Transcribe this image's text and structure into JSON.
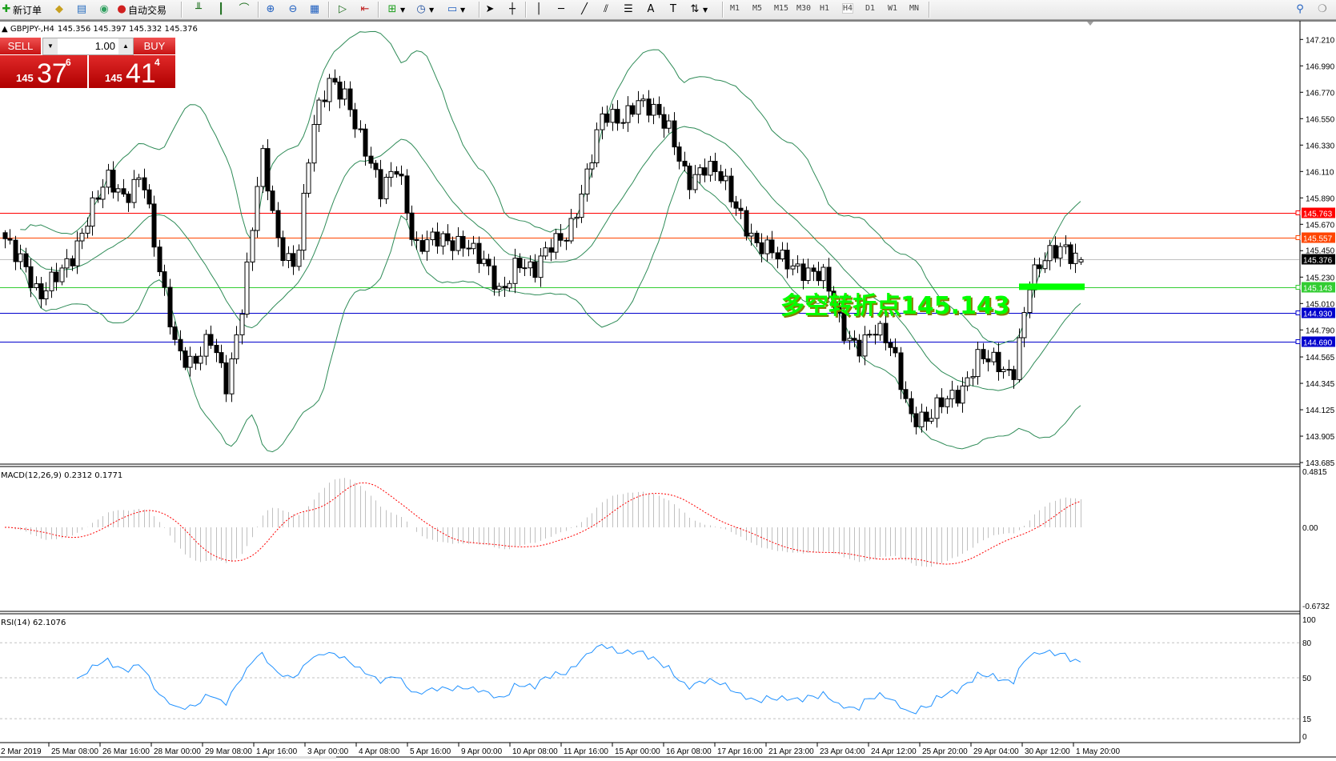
{
  "toolbar": {
    "new_order_label": "新订单",
    "auto_trading_label": "自动交易",
    "timeframes": [
      "M1",
      "M5",
      "M15",
      "M30",
      "H1",
      "H4",
      "D1",
      "W1",
      "MN"
    ],
    "active_timeframe": "H4"
  },
  "trade_panel": {
    "sell_label": "SELL",
    "buy_label": "BUY",
    "lot_value": "1.00",
    "sell_price": {
      "big_figure": "145",
      "pips": "37",
      "point": "6"
    },
    "buy_price": {
      "big_figure": "145",
      "pips": "41",
      "point": "4"
    },
    "color": "#d01818"
  },
  "chart_data": {
    "type": "candlestick",
    "symbol": "GBPJPY-,H4",
    "ohlc_text": "145.356 145.397 145.332 145.376",
    "last_bar": {
      "open": 145.356,
      "high": 145.397,
      "low": 145.332,
      "close": 145.376
    },
    "approx_close_path": [
      145.55,
      145.41,
      145.02,
      145.23,
      145.45,
      145.77,
      146.03,
      145.91,
      146.12,
      145.27,
      144.66,
      144.52,
      144.7,
      144.31,
      145.13,
      146.26,
      145.48,
      145.34,
      146.47,
      146.83,
      146.76,
      146.33,
      145.91,
      146.19,
      145.48,
      145.52,
      145.52,
      145.55,
      145.34,
      145.06,
      145.41,
      145.27,
      145.48,
      145.62,
      146.05,
      146.55,
      146.55,
      146.72,
      146.58,
      146.44,
      146.05,
      146.12,
      146.05,
      145.8,
      145.48,
      145.41,
      145.37,
      145.27,
      145.2,
      144.81,
      144.66,
      144.77,
      144.63,
      144.1,
      144.01,
      144.2,
      144.31,
      144.56,
      144.49,
      144.42,
      145.2,
      145.37,
      145.5,
      145.376
    ],
    "price_axis": [
      "147.210",
      "146.990",
      "146.770",
      "146.550",
      "146.330",
      "146.110",
      "145.890",
      "145.670",
      "145.450",
      "145.230",
      "145.010",
      "144.790",
      "144.565",
      "144.345",
      "144.125",
      "143.905",
      "143.685"
    ],
    "price_range": [
      143.685,
      147.21
    ],
    "time_axis": [
      "2 Mar 2019",
      "25 Mar 08:00",
      "26 Mar 16:00",
      "28 Mar 00:00",
      "29 Mar 08:00",
      "1 Apr 16:00",
      "3 Apr 00:00",
      "4 Apr 08:00",
      "5 Apr 16:00",
      "9 Apr 00:00",
      "10 Apr 08:00",
      "11 Apr 16:00",
      "15 Apr 00:00",
      "16 Apr 08:00",
      "17 Apr 16:00",
      "21 Apr 23:00",
      "23 Apr 04:00",
      "24 Apr 12:00",
      "25 Apr 20:00",
      "29 Apr 04:00",
      "30 Apr 12:00",
      "1 May 20:00"
    ],
    "levels": [
      {
        "price": "145.763",
        "color": "#ff0000",
        "text_color": "#ffffff"
      },
      {
        "price": "145.557",
        "color": "#ff4500",
        "text_color": "#ffffff"
      },
      {
        "price": "145.376",
        "color": "#c0c0c0",
        "label_bg": "#000000",
        "text_color": "#ffffff",
        "bid": true
      },
      {
        "price": "145.143",
        "color": "#32cd32",
        "text_color": "#ffffff"
      },
      {
        "price": "144.930",
        "color": "#0000cd",
        "text_color": "#ffffff"
      },
      {
        "price": "144.690",
        "color": "#0000cd",
        "text_color": "#ffffff"
      }
    ],
    "annotation": {
      "text": "多空转折点145.143",
      "color": "#00ff00",
      "price": 145.143
    },
    "bollinger_color": "#2e8b57",
    "macd": {
      "label": "MACD(12,26,9) 0.2312 0.1771",
      "axis": [
        "0.4815",
        "0.00",
        "-0.6732"
      ],
      "histogram_color": "#c0c0c0",
      "signal_color": "#ff0000"
    },
    "rsi": {
      "label": "RSI(14) 62.1076",
      "axis": [
        "100",
        "80",
        "50",
        "15",
        "0"
      ],
      "levels": [
        80,
        50,
        15
      ],
      "color": "#1e90ff"
    }
  }
}
